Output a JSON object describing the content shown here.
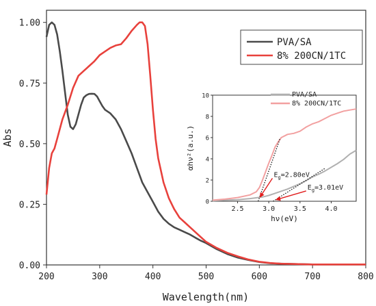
{
  "chart_data": [
    {
      "type": "line",
      "xlabel": "Wavelength(nm)",
      "ylabel": "Abs",
      "xlim": [
        200,
        800
      ],
      "ylim": [
        0,
        1.05
      ],
      "xticks": [
        "200",
        "300",
        "400",
        "500",
        "600",
        "700",
        "800"
      ],
      "yticks": [
        "0.00",
        "0.25",
        "0.50",
        "0.75",
        "1.00"
      ],
      "legend_position": "top-right",
      "series": [
        {
          "name": "PVA/SA",
          "color": "#4a4a4a",
          "x": [
            200,
            205,
            210,
            215,
            220,
            225,
            230,
            235,
            240,
            245,
            250,
            255,
            260,
            265,
            270,
            275,
            280,
            285,
            290,
            295,
            300,
            305,
            310,
            320,
            330,
            340,
            350,
            360,
            370,
            380,
            390,
            400,
            410,
            420,
            430,
            440,
            450,
            460,
            470,
            480,
            490,
            500,
            520,
            540,
            560,
            580,
            600,
            620,
            640,
            660,
            700,
            750,
            800
          ],
          "y": [
            0.94,
            0.99,
            1.0,
            0.99,
            0.95,
            0.88,
            0.8,
            0.71,
            0.62,
            0.57,
            0.56,
            0.58,
            0.62,
            0.66,
            0.69,
            0.7,
            0.705,
            0.706,
            0.705,
            0.695,
            0.675,
            0.655,
            0.64,
            0.625,
            0.6,
            0.56,
            0.51,
            0.46,
            0.4,
            0.34,
            0.3,
            0.26,
            0.22,
            0.19,
            0.17,
            0.155,
            0.145,
            0.135,
            0.125,
            0.112,
            0.1,
            0.09,
            0.065,
            0.045,
            0.03,
            0.02,
            0.012,
            0.007,
            0.005,
            0.004,
            0.002,
            0.002,
            0.002
          ]
        },
        {
          "name": "8% 200CN/1TC",
          "color": "#e8413c",
          "x": [
            200,
            205,
            210,
            215,
            220,
            230,
            240,
            250,
            260,
            270,
            280,
            290,
            300,
            310,
            320,
            330,
            340,
            350,
            360,
            370,
            375,
            380,
            385,
            390,
            395,
            400,
            405,
            410,
            420,
            430,
            440,
            450,
            460,
            470,
            480,
            490,
            500,
            520,
            540,
            560,
            580,
            600,
            620,
            640,
            660,
            700,
            750,
            800
          ],
          "y": [
            0.29,
            0.4,
            0.46,
            0.48,
            0.52,
            0.6,
            0.66,
            0.73,
            0.78,
            0.8,
            0.82,
            0.84,
            0.865,
            0.88,
            0.895,
            0.905,
            0.91,
            0.935,
            0.965,
            0.99,
            1.0,
            1.0,
            0.985,
            0.91,
            0.78,
            0.64,
            0.52,
            0.44,
            0.34,
            0.275,
            0.23,
            0.195,
            0.175,
            0.155,
            0.135,
            0.115,
            0.095,
            0.07,
            0.05,
            0.035,
            0.022,
            0.013,
            0.008,
            0.005,
            0.004,
            0.002,
            0.002,
            0.002
          ]
        }
      ]
    },
    {
      "type": "line",
      "xlabel": "hν(eV)",
      "ylabel": "αhν²(a.u.)",
      "xlim": [
        2.1,
        4.4
      ],
      "ylim": [
        0,
        10
      ],
      "xticks": [
        "2.5",
        "3.0",
        "3.5",
        "4.0"
      ],
      "yticks": [
        "0",
        "2",
        "4",
        "6",
        "8",
        "10"
      ],
      "legend_position": "top-left",
      "series": [
        {
          "name": "PVA/SA",
          "color": "#b0b0b0",
          "x": [
            2.1,
            2.3,
            2.5,
            2.7,
            2.9,
            3.0,
            3.1,
            3.2,
            3.3,
            3.4,
            3.5,
            3.6,
            3.7,
            3.8,
            3.9,
            4.0,
            4.1,
            4.2,
            4.3,
            4.4
          ],
          "y": [
            0.05,
            0.1,
            0.15,
            0.25,
            0.4,
            0.55,
            0.75,
            0.95,
            1.15,
            1.4,
            1.65,
            1.95,
            2.3,
            2.55,
            2.85,
            3.2,
            3.55,
            3.95,
            4.45,
            4.8
          ]
        },
        {
          "name": "8% 200CN/1TC",
          "color": "#f2a0a0",
          "x": [
            2.1,
            2.3,
            2.5,
            2.7,
            2.8,
            2.85,
            2.9,
            2.95,
            3.0,
            3.05,
            3.1,
            3.15,
            3.2,
            3.3,
            3.4,
            3.5,
            3.6,
            3.7,
            3.8,
            3.9,
            4.0,
            4.1,
            4.2,
            4.3,
            4.4
          ],
          "y": [
            0.1,
            0.2,
            0.35,
            0.6,
            0.9,
            1.3,
            2.0,
            2.8,
            3.6,
            4.3,
            5.1,
            5.6,
            6.0,
            6.3,
            6.4,
            6.6,
            7.0,
            7.3,
            7.5,
            7.8,
            8.1,
            8.3,
            8.5,
            8.6,
            8.7
          ]
        }
      ],
      "tangents": [
        {
          "x": [
            2.83,
            3.18
          ],
          "y": [
            0.0,
            5.9
          ],
          "color": "#111111"
        },
        {
          "x": [
            3.07,
            3.9
          ],
          "y": [
            0.0,
            3.1
          ],
          "color": "#111111"
        }
      ],
      "annotations": [
        {
          "text_prefix": "E",
          "text_sub": "g",
          "text_suffix": "=2.80eV",
          "text_x": 3.08,
          "text_y": 2.3,
          "arrow_to_x": 2.86,
          "arrow_to_y": 0.4
        },
        {
          "text_prefix": "E",
          "text_sub": "g",
          "text_suffix": "=3.01eV",
          "text_x": 3.62,
          "text_y": 1.1,
          "arrow_to_x": 3.12,
          "arrow_to_y": 0.15
        }
      ]
    }
  ]
}
